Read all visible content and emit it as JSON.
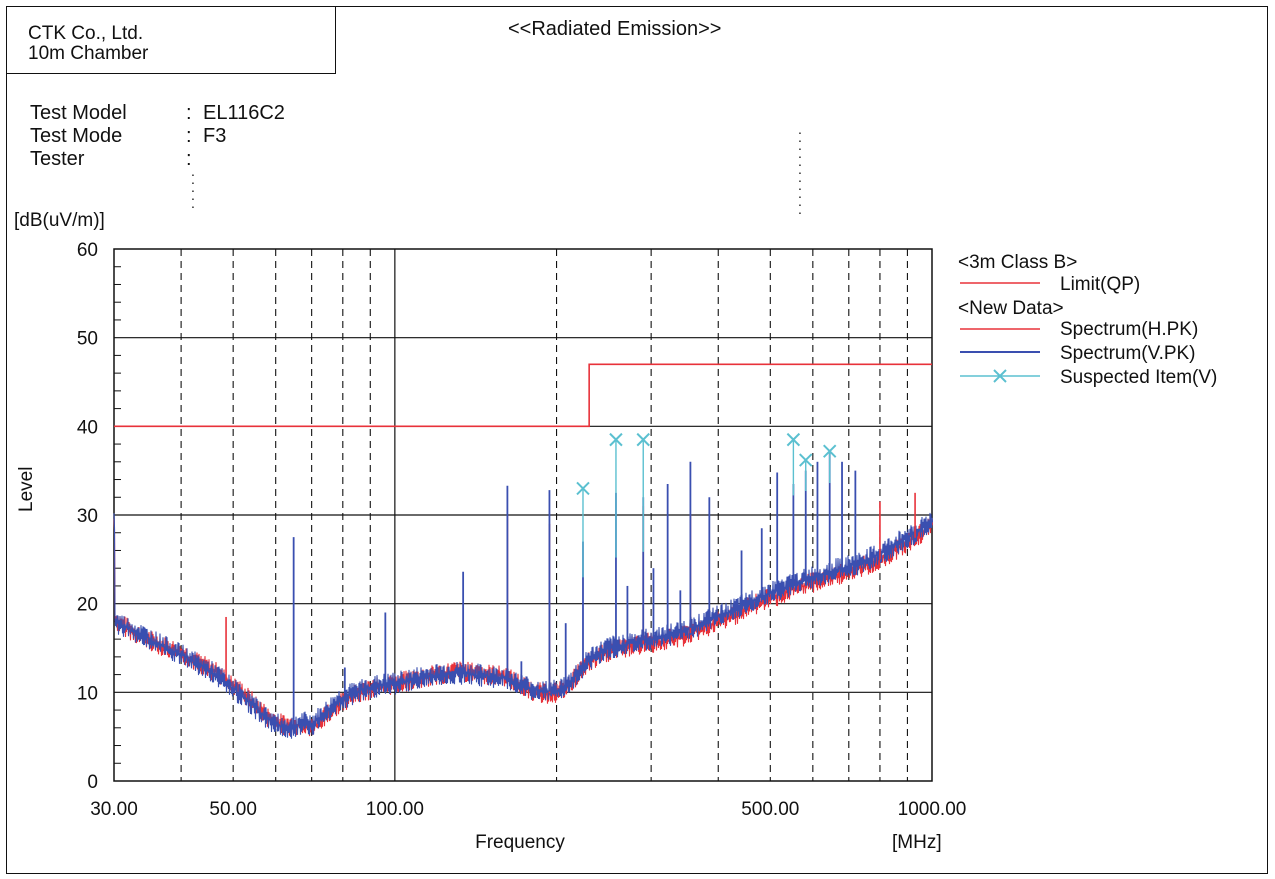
{
  "header": {
    "company_line1": "CTK Co., Ltd.",
    "company_line2": "10m Chamber",
    "title": "<<Radiated Emission>>"
  },
  "info": [
    {
      "label": "Test Model",
      "value": "EL116C2"
    },
    {
      "label": "Test Mode",
      "value": "F3"
    },
    {
      "label": "Tester",
      "value": ""
    }
  ],
  "colors": {
    "limit": "#e8323a",
    "spectrum_h": "#e8323a",
    "spectrum_v": "#3a4fb0",
    "suspected": "#5bc0d0",
    "grid": "#111111"
  },
  "chart_data": {
    "type": "line",
    "x_scale": "log",
    "xlim": [
      30,
      1000
    ],
    "ylim": [
      0,
      60
    ],
    "ylabel": "Level",
    "yunit": "[dB(uV/m)]",
    "xlabel": "Frequency",
    "xunit": "[MHz]",
    "x_tick_labels": [
      {
        "value": 30,
        "label": "30.00"
      },
      {
        "value": 50,
        "label": "50.00"
      },
      {
        "value": 100,
        "label": "100.00"
      },
      {
        "value": 500,
        "label": "500.00"
      },
      {
        "value": 1000,
        "label": "1000.00"
      }
    ],
    "y_ticks": [
      0,
      10,
      20,
      30,
      40,
      50,
      60
    ],
    "x_grid_major": [
      100
    ],
    "x_grid_minor": [
      40,
      50,
      60,
      70,
      80,
      90,
      200,
      300,
      400,
      500,
      600,
      700,
      800,
      900
    ],
    "y_grid": [
      10,
      20,
      30,
      40,
      50
    ],
    "grid": true,
    "legend": {
      "position": "right",
      "group1": "<3m Class B>",
      "group2": "<New Data>",
      "items": [
        {
          "name": "Limit(QP)",
          "color": "#e8323a",
          "marker": "none"
        },
        {
          "name": "Spectrum(H.PK)",
          "color": "#e8323a",
          "marker": "none"
        },
        {
          "name": "Spectrum(V.PK)",
          "color": "#3a4fb0",
          "marker": "none"
        },
        {
          "name": "Suspected Item(V)",
          "color": "#5bc0d0",
          "marker": "x"
        }
      ]
    },
    "series": [
      {
        "name": "Limit(QP)",
        "x": [
          30,
          230,
          230,
          1000
        ],
        "y": [
          40,
          40,
          47,
          47
        ]
      },
      {
        "name": "Spectrum(H.PK)",
        "x": [
          30,
          33,
          36,
          40,
          44,
          47,
          49,
          52,
          55,
          58,
          61,
          64,
          67,
          70,
          74,
          78,
          83,
          88,
          94,
          100,
          110,
          120,
          130,
          140,
          150,
          160,
          170,
          180,
          190,
          200,
          210,
          220,
          230,
          250,
          275,
          300,
          340,
          380,
          430,
          480,
          540,
          600,
          660,
          720,
          800,
          870,
          940,
          1000
        ],
        "y": [
          18.2,
          16.6,
          15.5,
          14.4,
          13.0,
          12.1,
          11.0,
          10.0,
          8.6,
          7.2,
          6.5,
          6.2,
          6.4,
          6.0,
          7.2,
          8.6,
          9.6,
          10.2,
          10.6,
          11.0,
          11.5,
          12.0,
          12.4,
          12.2,
          12.0,
          11.8,
          11.0,
          10.2,
          9.8,
          10.0,
          10.6,
          12.2,
          13.4,
          14.6,
          15.2,
          15.6,
          16.2,
          17.4,
          18.8,
          20.2,
          21.4,
          22.4,
          23.2,
          23.8,
          25.0,
          26.4,
          27.6,
          29.0
        ]
      },
      {
        "name": "Spectrum(V.PK)",
        "x": [
          30,
          33,
          36,
          40,
          44,
          47,
          49,
          52,
          55,
          58,
          61,
          64,
          67,
          70,
          74,
          78,
          83,
          88,
          94,
          100,
          110,
          120,
          130,
          140,
          150,
          160,
          170,
          180,
          190,
          200,
          210,
          220,
          230,
          250,
          275,
          300,
          340,
          380,
          430,
          480,
          540,
          600,
          660,
          720,
          800,
          870,
          940,
          1000
        ],
        "y": [
          18.0,
          16.8,
          15.6,
          14.2,
          12.8,
          11.8,
          10.8,
          9.6,
          8.2,
          7.0,
          6.2,
          6.0,
          6.6,
          6.4,
          7.6,
          9.0,
          9.8,
          10.4,
          10.8,
          11.0,
          11.6,
          12.0,
          12.2,
          12.0,
          11.8,
          11.6,
          11.0,
          10.4,
          10.0,
          10.2,
          10.8,
          12.4,
          13.8,
          15.0,
          15.6,
          16.0,
          16.8,
          18.0,
          19.4,
          20.8,
          22.0,
          23.0,
          23.8,
          24.4,
          25.6,
          27.0,
          28.2,
          29.4
        ]
      },
      {
        "name": "Suspected Item(V)",
        "x": [
          224,
          258,
          290,
          552,
          582,
          645
        ],
        "y": [
          33.0,
          38.5,
          38.5,
          38.5,
          36.2,
          37.2
        ]
      }
    ],
    "spikes_v": [
      {
        "x": 64.8,
        "y": 27.5
      },
      {
        "x": 80.7,
        "y": 12.8
      },
      {
        "x": 96.0,
        "y": 19.0
      },
      {
        "x": 134,
        "y": 23.6
      },
      {
        "x": 162,
        "y": 33.3
      },
      {
        "x": 172,
        "y": 13.5
      },
      {
        "x": 194,
        "y": 32.8
      },
      {
        "x": 208,
        "y": 17.8
      },
      {
        "x": 224,
        "y": 27.0
      },
      {
        "x": 258,
        "y": 32.5
      },
      {
        "x": 271,
        "y": 22.0
      },
      {
        "x": 290,
        "y": 32.0
      },
      {
        "x": 303,
        "y": 24.0
      },
      {
        "x": 322,
        "y": 33.5
      },
      {
        "x": 340,
        "y": 21.5
      },
      {
        "x": 355,
        "y": 36.0
      },
      {
        "x": 385,
        "y": 32.0
      },
      {
        "x": 411,
        "y": 19.0
      },
      {
        "x": 442,
        "y": 26.0
      },
      {
        "x": 482,
        "y": 28.5
      },
      {
        "x": 515,
        "y": 34.8
      },
      {
        "x": 552,
        "y": 33.5
      },
      {
        "x": 582,
        "y": 35.0
      },
      {
        "x": 612,
        "y": 36.0
      },
      {
        "x": 645,
        "y": 37.0
      },
      {
        "x": 680,
        "y": 36.0
      },
      {
        "x": 720,
        "y": 35.0
      }
    ],
    "spikes_h": [
      {
        "x": 48.5,
        "y": 18.5
      },
      {
        "x": 162,
        "y": 30.0
      },
      {
        "x": 194,
        "y": 29.0
      },
      {
        "x": 290,
        "y": 31.0
      },
      {
        "x": 355,
        "y": 30.0
      },
      {
        "x": 800,
        "y": 31.5
      },
      {
        "x": 930,
        "y": 32.5
      }
    ]
  }
}
